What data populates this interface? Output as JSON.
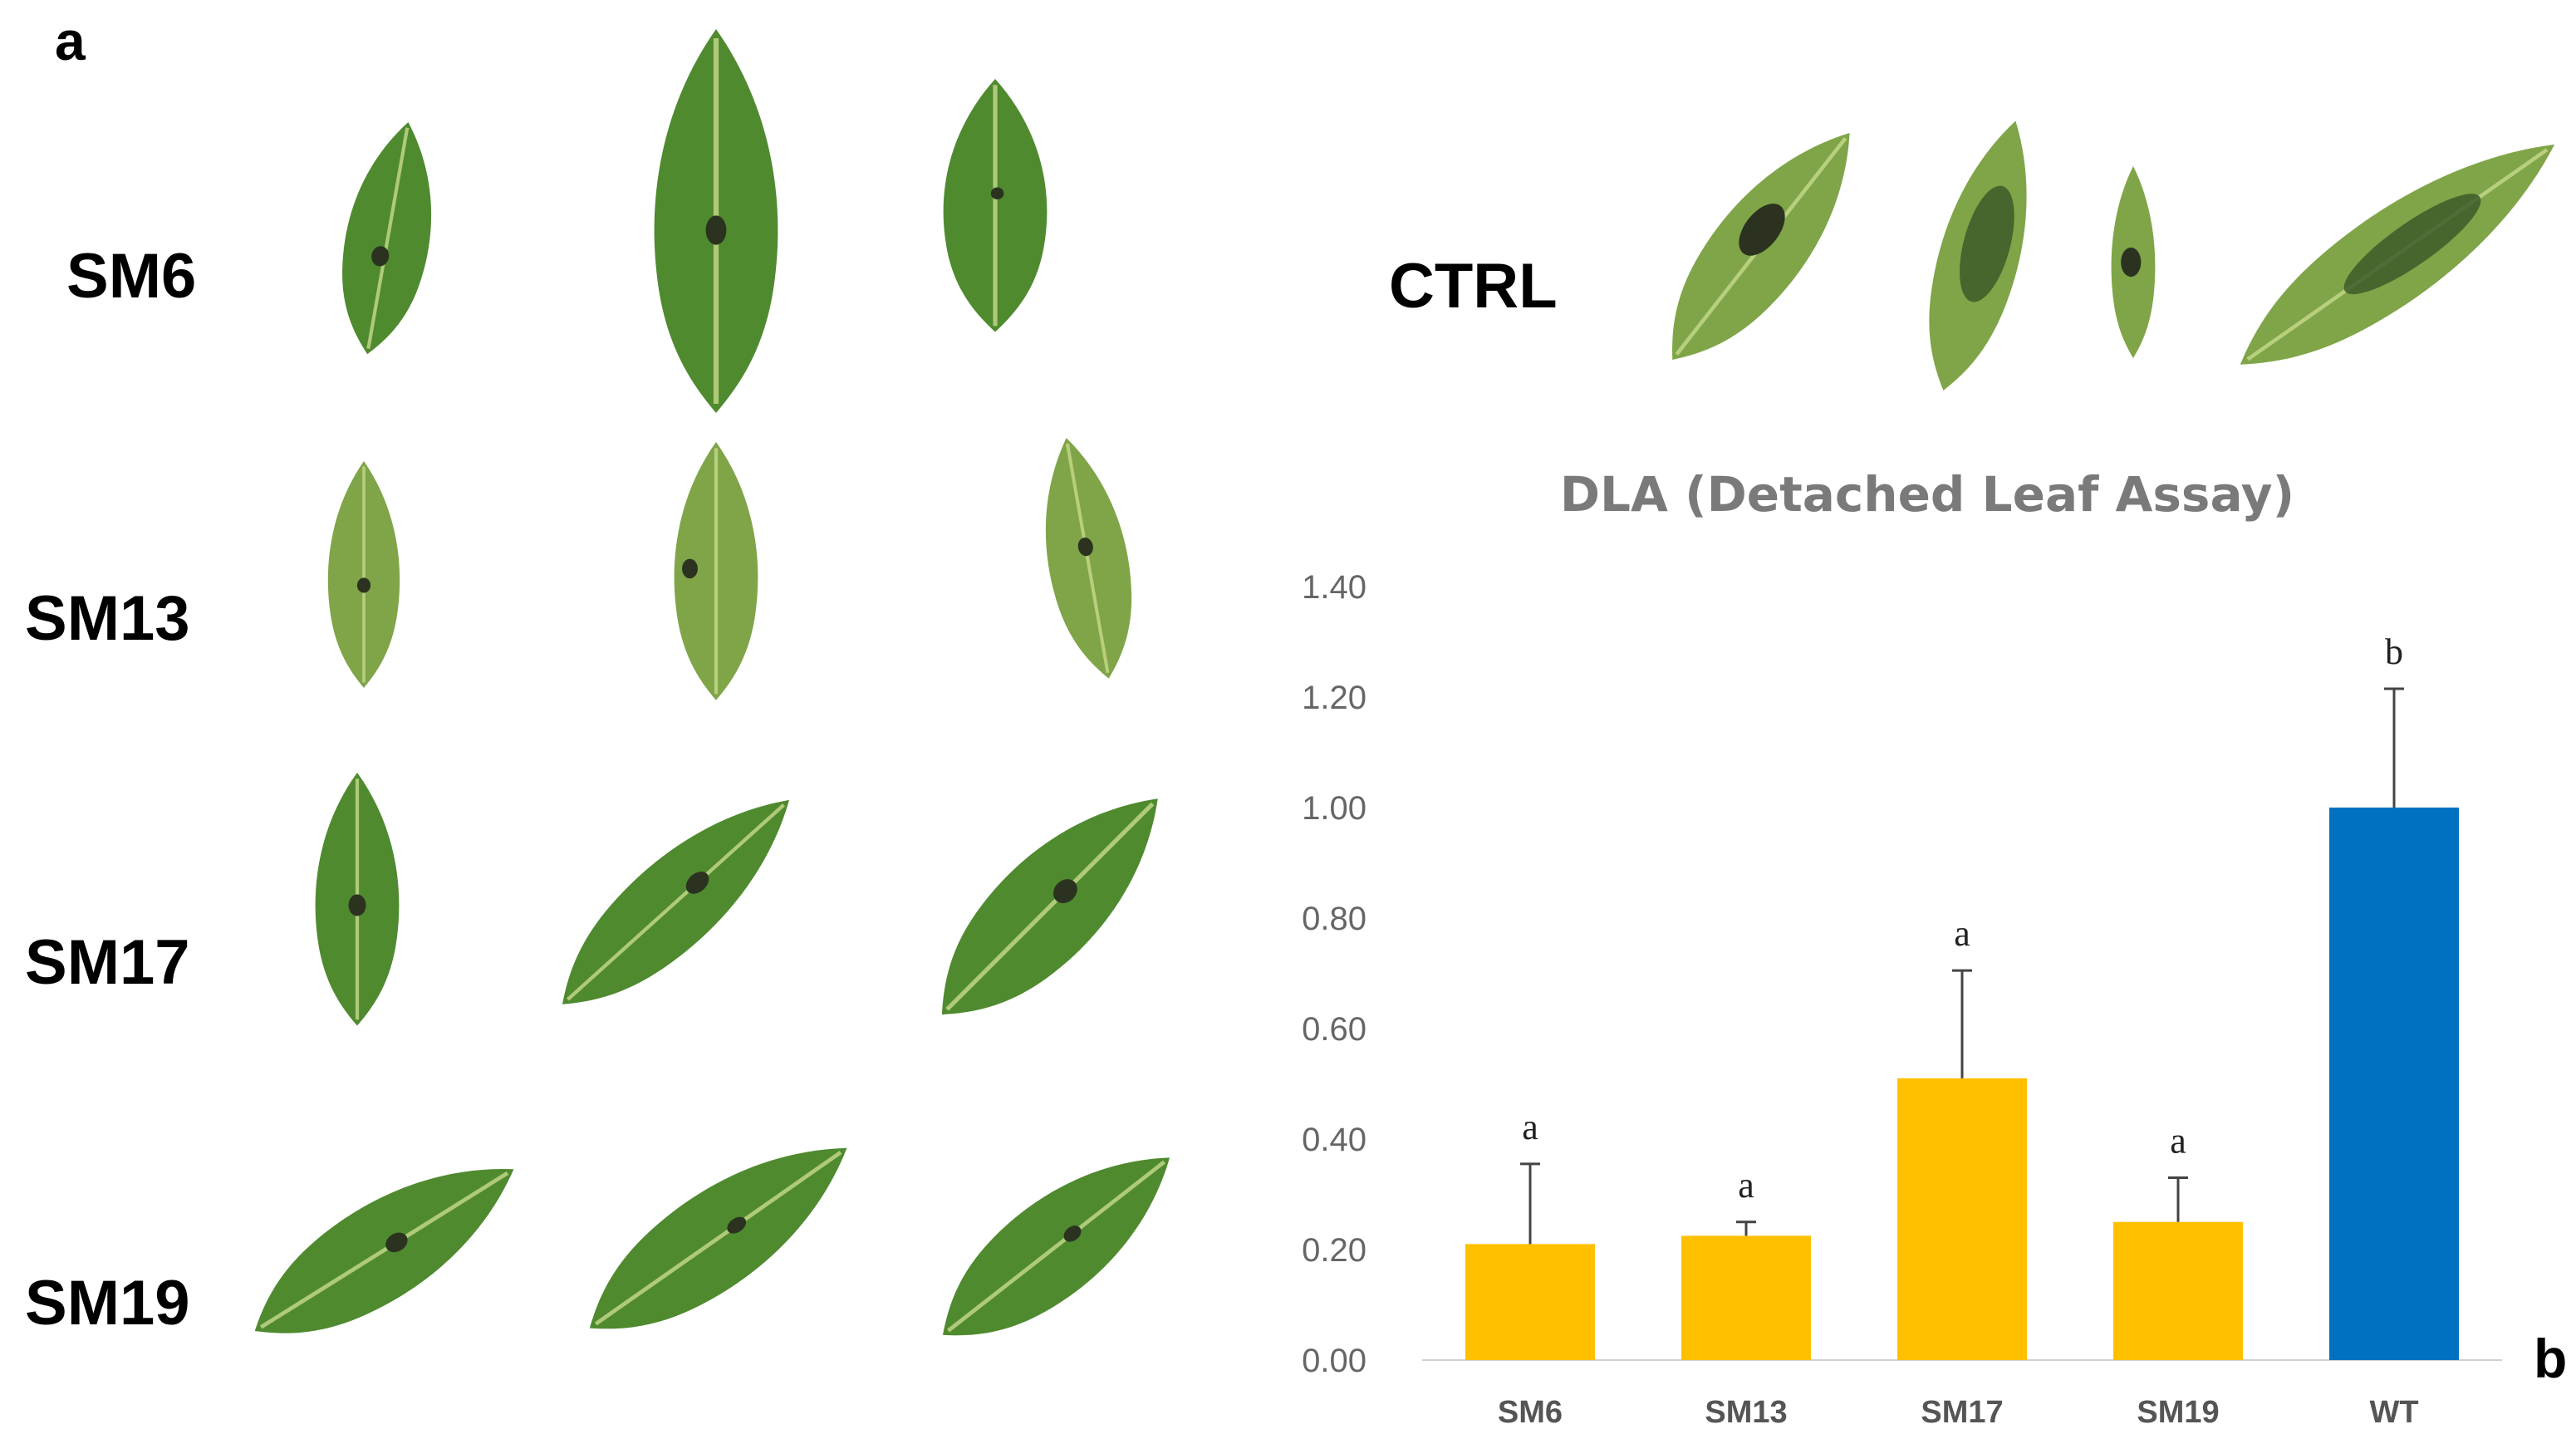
{
  "panels": {
    "a": "a",
    "b": "b"
  },
  "row_labels": [
    "SM6",
    "SM13",
    "SM17",
    "SM19"
  ],
  "ctrl_label": "CTRL",
  "chart_data": {
    "type": "bar",
    "title": "DLA (Detached Leaf Assay)",
    "categories": [
      "SM6",
      "SM13",
      "SM17",
      "SM19",
      "WT"
    ],
    "values": [
      0.21,
      0.225,
      0.51,
      0.25,
      1.0
    ],
    "errors": [
      0.145,
      0.025,
      0.195,
      0.08,
      0.215
    ],
    "significance": [
      "a",
      "a",
      "a",
      "a",
      "b"
    ],
    "colors": [
      "#ffc000",
      "#ffc000",
      "#ffc000",
      "#ffc000",
      "#0070c0"
    ],
    "ylim": [
      0,
      1.4
    ],
    "yticks": [
      "0.00",
      "0.20",
      "0.40",
      "0.60",
      "0.80",
      "1.00",
      "1.20",
      "1.40"
    ],
    "xlabel": "",
    "ylabel": "",
    "grid": false
  }
}
